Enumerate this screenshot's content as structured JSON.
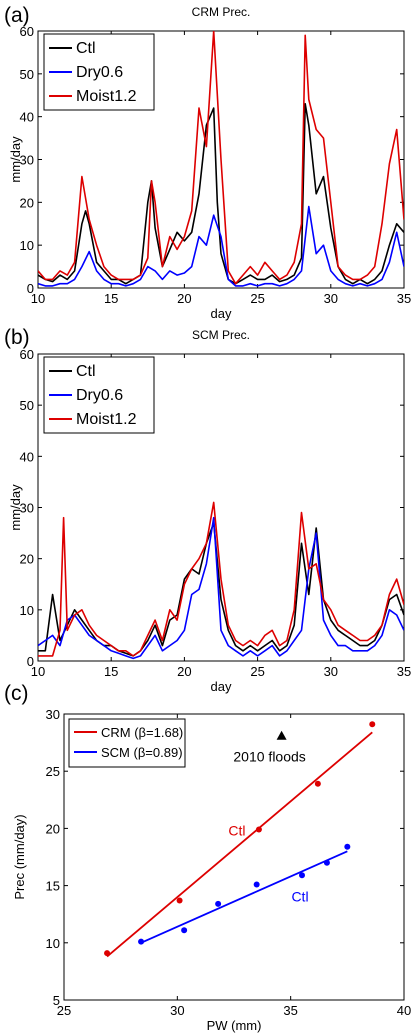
{
  "chart_data": [
    {
      "panel_label": "(a)",
      "type": "line",
      "title": "CRM Prec.",
      "xlabel": "day",
      "ylabel": "mm/day",
      "xlim": [
        10,
        35
      ],
      "ylim": [
        0,
        60
      ],
      "xticks": [
        "10",
        "15",
        "20",
        "25",
        "30",
        "35"
      ],
      "yticks": [
        "0",
        "10",
        "20",
        "30",
        "40",
        "50",
        "60"
      ],
      "grid": false,
      "legend_position": "top-left",
      "series": [
        {
          "name": "Ctl",
          "color": "#000000",
          "x": [
            10,
            10.5,
            11,
            11.5,
            12,
            12.5,
            13,
            13.25,
            13.5,
            14,
            14.5,
            15,
            15.5,
            16,
            16.5,
            17,
            17.5,
            17.75,
            18,
            18.5,
            19,
            19.5,
            20,
            20.5,
            21,
            21.5,
            22,
            22.25,
            22.5,
            23,
            23.5,
            24,
            24.5,
            25,
            25.5,
            26,
            26.5,
            27,
            27.5,
            28,
            28.25,
            28.5,
            29,
            29.5,
            30,
            30.5,
            31,
            31.5,
            32,
            32.5,
            33,
            33.5,
            34,
            34.5,
            35
          ],
          "y": [
            3,
            2,
            1.5,
            3,
            2,
            4,
            15,
            18,
            15,
            6,
            4,
            2,
            2,
            1,
            2,
            3,
            20,
            25,
            14,
            5,
            9,
            13,
            11,
            13,
            22,
            38,
            42,
            20,
            8,
            2,
            1,
            2,
            3,
            2,
            2,
            3,
            1.5,
            2,
            3,
            7,
            43,
            38,
            22,
            26,
            14,
            5,
            2,
            1,
            2,
            1,
            2,
            4,
            10,
            15,
            13
          ]
        },
        {
          "name": "Dry0.6",
          "color": "#0000ff",
          "x": [
            10,
            10.5,
            11,
            11.5,
            12,
            12.5,
            13,
            13.5,
            14,
            14.5,
            15,
            15.5,
            16,
            16.5,
            17,
            17.5,
            18,
            18.5,
            19,
            19.5,
            20,
            20.5,
            21,
            21.5,
            22,
            22.5,
            23,
            23.5,
            24,
            24.5,
            25,
            25.5,
            26,
            26.5,
            27,
            27.5,
            28,
            28.5,
            29,
            29.5,
            30,
            30.5,
            31,
            31.5,
            32,
            32.5,
            33,
            33.5,
            34,
            34.5,
            35
          ],
          "y": [
            1,
            0.5,
            0.5,
            1,
            1,
            2,
            5,
            8.5,
            4,
            2,
            1,
            1,
            0.5,
            1,
            2,
            5,
            4,
            2,
            4,
            3,
            3.5,
            5,
            12,
            10,
            17,
            12,
            2,
            0.5,
            0.5,
            1,
            0.5,
            1,
            1,
            0.5,
            1,
            2,
            4,
            19,
            8,
            10,
            4,
            2,
            1,
            0.5,
            1,
            0.5,
            1,
            2,
            6,
            13,
            5
          ]
        },
        {
          "name": "Moist1.2",
          "color": "#dd0000",
          "x": [
            10,
            10.5,
            11,
            11.5,
            12,
            12.5,
            13,
            13.5,
            14,
            14.5,
            15,
            15.5,
            16,
            16.5,
            17,
            17.5,
            17.75,
            18,
            18.5,
            19,
            19.5,
            20,
            20.5,
            21,
            21.5,
            22,
            22.5,
            23,
            23.5,
            24,
            24.5,
            25,
            25.5,
            26,
            26.5,
            27,
            27.5,
            28,
            28.25,
            28.5,
            29,
            29.5,
            30,
            30.5,
            31,
            31.5,
            32,
            32.5,
            33,
            33.5,
            34,
            34.5,
            35
          ],
          "y": [
            4,
            2,
            2,
            4,
            3,
            6,
            26,
            16,
            10,
            5,
            3,
            2,
            2,
            2,
            3,
            7,
            25,
            20,
            5,
            12,
            9,
            12,
            18,
            42,
            33,
            60,
            30,
            4,
            1,
            3,
            5,
            3,
            6,
            4,
            2,
            3,
            6,
            15,
            59,
            44,
            37,
            35,
            20,
            5,
            3,
            2,
            2,
            3,
            5,
            15,
            29,
            37,
            16
          ]
        }
      ]
    },
    {
      "panel_label": "(b)",
      "type": "line",
      "title": "SCM Prec.",
      "xlabel": "day",
      "ylabel": "mm/day",
      "xlim": [
        10,
        35
      ],
      "ylim": [
        0,
        60
      ],
      "xticks": [
        "10",
        "15",
        "20",
        "25",
        "30",
        "35"
      ],
      "yticks": [
        "0",
        "10",
        "20",
        "30",
        "40",
        "50",
        "60"
      ],
      "grid": false,
      "legend_position": "top-left",
      "series": [
        {
          "name": "Ctl",
          "color": "#000000",
          "x": [
            10,
            10.5,
            11,
            11.5,
            12,
            12.5,
            13,
            13.5,
            14,
            14.5,
            15,
            15.5,
            16,
            16.5,
            17,
            17.5,
            18,
            18.5,
            19,
            19.5,
            20,
            20.5,
            21,
            21.5,
            22,
            22.5,
            23,
            23.5,
            24,
            24.5,
            25,
            25.5,
            26,
            26.5,
            27,
            27.5,
            28,
            28.5,
            29,
            29.5,
            30,
            30.5,
            31,
            31.5,
            32,
            32.5,
            33,
            33.5,
            34,
            34.5,
            35
          ],
          "y": [
            2,
            2,
            13,
            4,
            7,
            10,
            8,
            6,
            4,
            3,
            3,
            2,
            1.5,
            1,
            2,
            4,
            7,
            3,
            8,
            9,
            16,
            18,
            17,
            23,
            27,
            12,
            6,
            3,
            2,
            3,
            2,
            3,
            4,
            2,
            3,
            7,
            23,
            13,
            26,
            12,
            8,
            6,
            5,
            4,
            3,
            3,
            4,
            7,
            12,
            13,
            9
          ]
        },
        {
          "name": "Dry0.6",
          "color": "#0000ff",
          "x": [
            10,
            10.5,
            11,
            11.5,
            12,
            12.5,
            13,
            13.5,
            14,
            14.5,
            15,
            15.5,
            16,
            16.5,
            17,
            17.5,
            18,
            18.5,
            19,
            19.5,
            20,
            20.5,
            21,
            21.5,
            22,
            22.5,
            23,
            23.5,
            24,
            24.5,
            25,
            25.5,
            26,
            26.5,
            27,
            27.5,
            28,
            28.5,
            29,
            29.5,
            30,
            30.5,
            31,
            31.5,
            32,
            32.5,
            33,
            33.5,
            34,
            34.5,
            35
          ],
          "y": [
            3,
            4,
            5,
            3,
            8,
            9,
            7,
            5,
            4,
            3,
            2,
            1.5,
            1,
            0.5,
            1,
            3,
            5,
            2,
            3,
            4,
            6,
            13,
            14,
            19,
            28,
            6,
            3,
            2,
            1,
            2,
            1,
            2,
            3,
            1,
            2,
            4,
            6,
            18,
            25,
            8,
            5,
            3,
            3,
            2,
            2,
            2,
            3,
            5,
            10,
            9,
            6
          ]
        },
        {
          "name": "Moist1.2",
          "color": "#dd0000",
          "x": [
            10,
            10.5,
            11,
            11.5,
            11.75,
            12,
            12.5,
            13,
            13.5,
            14,
            14.5,
            15,
            15.5,
            16,
            16.5,
            17,
            17.5,
            18,
            18.5,
            19,
            19.5,
            20,
            20.5,
            21,
            21.5,
            22,
            22.5,
            23,
            23.5,
            24,
            24.5,
            25,
            25.5,
            26,
            26.5,
            27,
            27.5,
            28,
            28.5,
            29,
            29.5,
            30,
            30.5,
            31,
            31.5,
            32,
            32.5,
            33,
            33.5,
            34,
            34.5,
            35
          ],
          "y": [
            1,
            1,
            1,
            6,
            28,
            6,
            9,
            10,
            7,
            5,
            4,
            3,
            2,
            2,
            1,
            2,
            5,
            8,
            4,
            10,
            8,
            15,
            18,
            20,
            23,
            31,
            16,
            7,
            4,
            3,
            4,
            3,
            5,
            6,
            3,
            4,
            10,
            29,
            18,
            19,
            12,
            10,
            7,
            6,
            5,
            4,
            4,
            5,
            7,
            13,
            16,
            11
          ]
        }
      ]
    },
    {
      "panel_label": "(c)",
      "type": "scatter",
      "xlabel": "PW (mm)",
      "ylabel": "Prec (mm/day)",
      "xlim": [
        25,
        40
      ],
      "ylim": [
        5,
        30
      ],
      "xticks": [
        "25",
        "30",
        "35",
        "40"
      ],
      "yticks": [
        "5",
        "10",
        "15",
        "20",
        "25",
        "30"
      ],
      "grid": false,
      "legend_position": "top-left",
      "series": [
        {
          "name": "CRM (β=1.68)",
          "color": "#dd0000",
          "points_x": [
            26.9,
            30.1,
            33.6,
            36.2,
            38.6
          ],
          "points_y": [
            9.1,
            13.7,
            19.9,
            23.9,
            29.1
          ],
          "fit_x": [
            26.9,
            38.6
          ],
          "fit_y": [
            8.8,
            28.4
          ]
        },
        {
          "name": "SCM (β=0.89)",
          "color": "#0000ff",
          "points_x": [
            28.4,
            30.3,
            31.8,
            33.5,
            35.5,
            36.6,
            37.5
          ],
          "points_y": [
            10.1,
            11.1,
            13.4,
            15.1,
            15.9,
            17.0,
            18.4
          ],
          "fit_x": [
            28.4,
            37.5
          ],
          "fit_y": [
            10.0,
            18.0
          ]
        }
      ],
      "annotations": [
        {
          "text": "2010 floods",
          "x": 34.6,
          "y": 28.1,
          "marker": "triangle",
          "color": "#000000"
        },
        {
          "text": "Ctl",
          "x": 33.6,
          "y": 19.9,
          "color": "#dd0000"
        },
        {
          "text": "Ctl",
          "x": 35.5,
          "y": 15.9,
          "color": "#0000ff"
        }
      ]
    }
  ]
}
